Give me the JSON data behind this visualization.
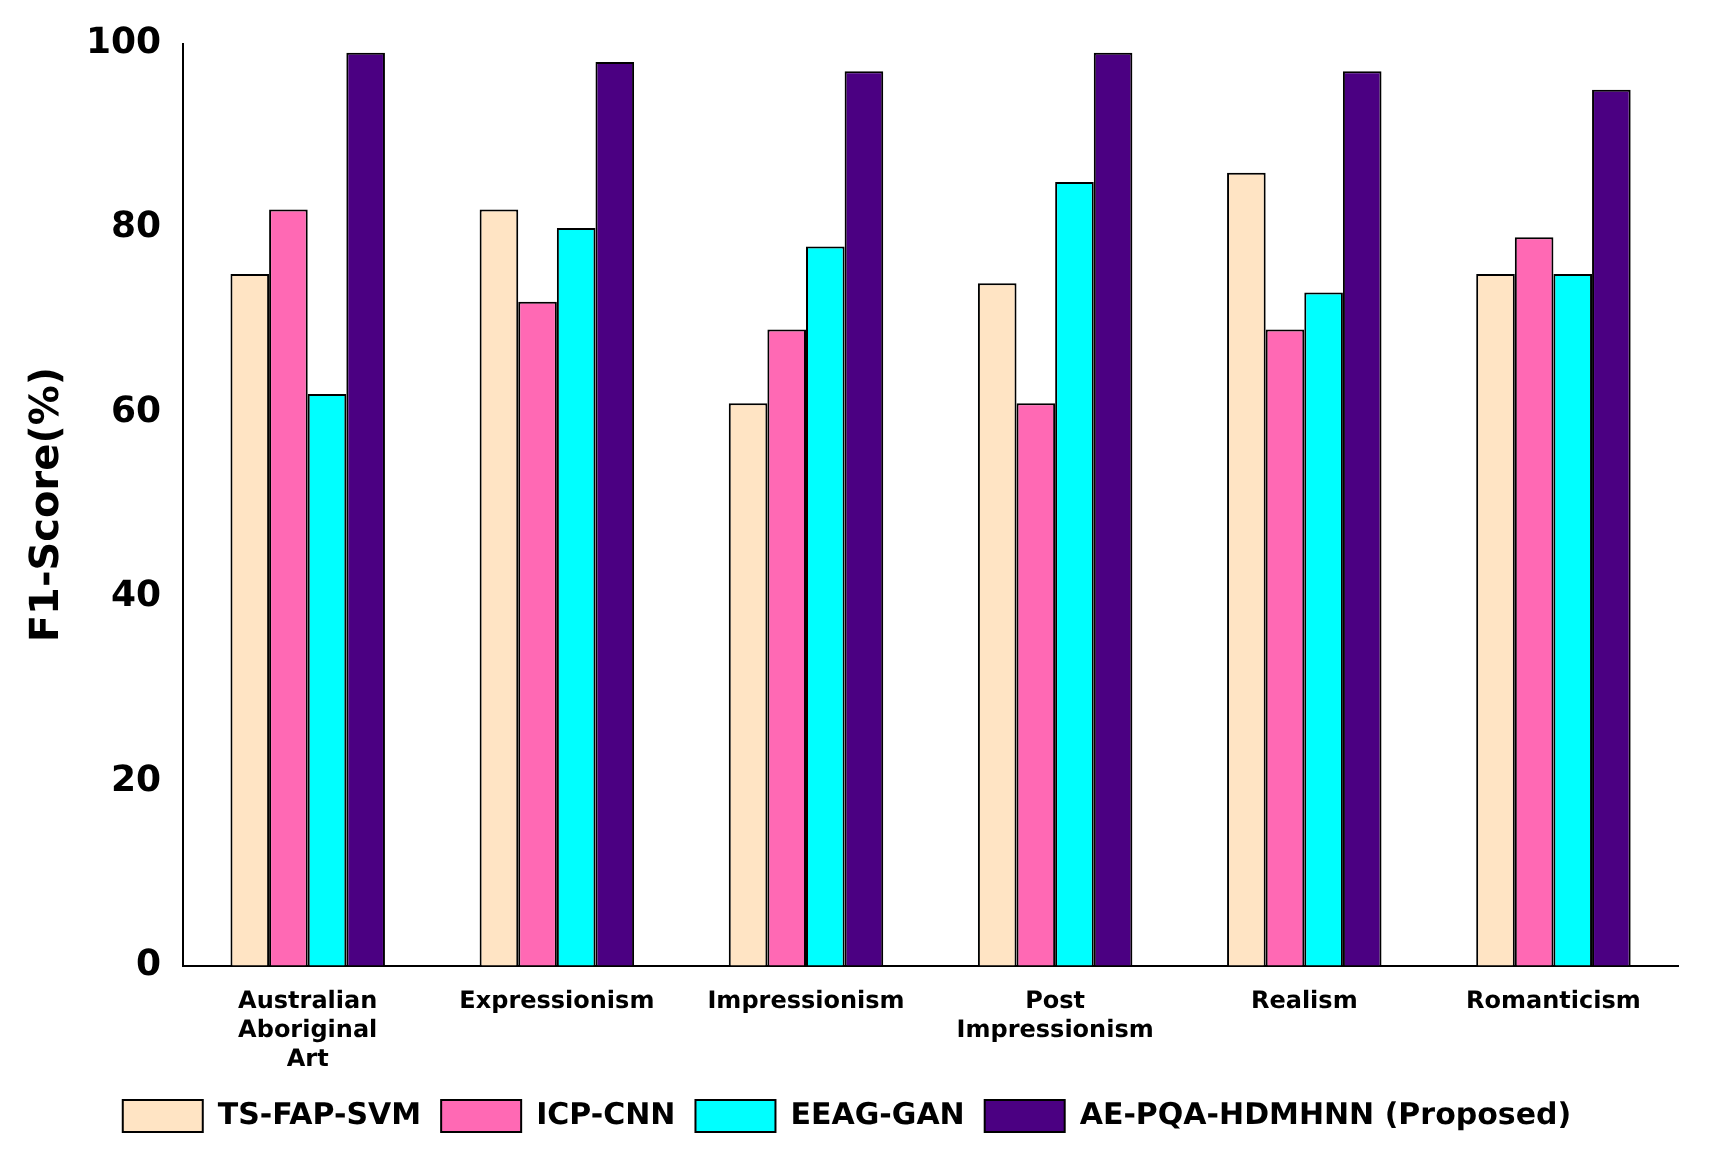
{
  "chart_data": {
    "type": "bar",
    "ylabel": "F1-Score(%)",
    "categories": [
      "Australian Aboriginal Art",
      "Expressionism",
      "Impressionism",
      "Post Impressionism",
      "Realism",
      "Romanticism"
    ],
    "series": [
      {
        "name": "TS-FAP-SVM",
        "color": "#ffe4c4",
        "values": [
          75,
          82,
          61,
          74,
          86,
          75
        ]
      },
      {
        "name": "ICP-CNN",
        "color": "#ff69b4",
        "values": [
          82,
          72,
          69,
          61,
          69,
          79
        ]
      },
      {
        "name": "EEAG-GAN",
        "color": "#00ffff",
        "values": [
          62,
          80,
          78,
          85,
          73,
          75
        ]
      },
      {
        "name": "AE-PQA-HDMHNN (Proposed)",
        "color": "#4b0082",
        "values": [
          99,
          98,
          97,
          99,
          97,
          95
        ]
      }
    ],
    "ylim": [
      0,
      100
    ],
    "yticks": [
      0,
      20,
      40,
      60,
      80,
      100
    ],
    "grid": false,
    "legend": "bottom"
  }
}
